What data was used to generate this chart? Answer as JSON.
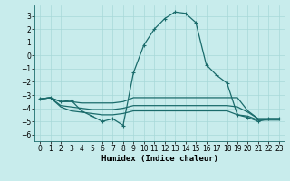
{
  "xlabel": "Humidex (Indice chaleur)",
  "ylabel": "",
  "xlim": [
    -0.5,
    23.5
  ],
  "ylim": [
    -6.5,
    3.8
  ],
  "yticks": [
    -6,
    -5,
    -4,
    -3,
    -2,
    -1,
    0,
    1,
    2,
    3
  ],
  "xticks": [
    0,
    1,
    2,
    3,
    4,
    5,
    6,
    7,
    8,
    9,
    10,
    11,
    12,
    13,
    14,
    15,
    16,
    17,
    18,
    19,
    20,
    21,
    22,
    23
  ],
  "bg_color": "#c8ecec",
  "line_color": "#1a6b6b",
  "grid_color": "#a8d8d8",
  "main_y": [
    -3.3,
    -3.2,
    -3.5,
    -3.4,
    -4.2,
    -4.6,
    -5.0,
    -4.8,
    -5.3,
    -1.3,
    0.8,
    2.0,
    2.8,
    3.3,
    3.2,
    2.5,
    -0.7,
    -1.5,
    -2.1,
    -4.5,
    -4.7,
    -5.0,
    -4.8,
    -4.8
  ],
  "flat1_y": [
    -3.3,
    -3.2,
    -3.5,
    -3.5,
    -3.6,
    -3.6,
    -3.6,
    -3.6,
    -3.5,
    -3.2,
    -3.2,
    -3.2,
    -3.2,
    -3.2,
    -3.2,
    -3.2,
    -3.2,
    -3.2,
    -3.2,
    -3.2,
    -4.2,
    -4.8,
    -4.8,
    -4.8
  ],
  "flat2_y": [
    -3.3,
    -3.2,
    -3.8,
    -3.9,
    -4.0,
    -4.1,
    -4.1,
    -4.1,
    -4.0,
    -3.8,
    -3.8,
    -3.8,
    -3.8,
    -3.8,
    -3.8,
    -3.8,
    -3.8,
    -3.8,
    -3.8,
    -3.9,
    -4.3,
    -4.8,
    -4.8,
    -4.8
  ],
  "flat3_y": [
    -3.3,
    -3.2,
    -3.9,
    -4.2,
    -4.3,
    -4.4,
    -4.5,
    -4.5,
    -4.4,
    -4.2,
    -4.2,
    -4.2,
    -4.2,
    -4.2,
    -4.2,
    -4.2,
    -4.2,
    -4.2,
    -4.2,
    -4.5,
    -4.6,
    -4.9,
    -4.9,
    -4.9
  ],
  "xlabel_fontsize": 6.5,
  "tick_fontsize": 5.5,
  "linewidth": 0.9,
  "marker_size": 3.5
}
